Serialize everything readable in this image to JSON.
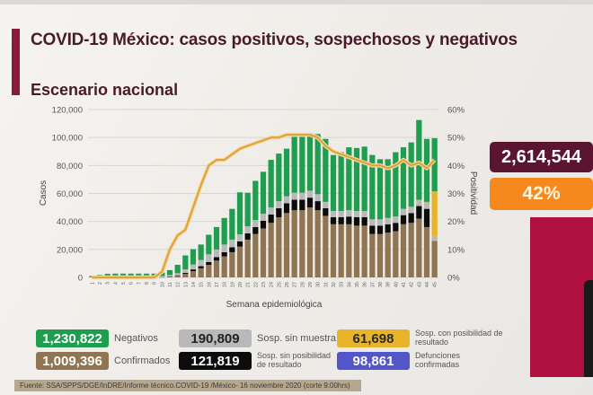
{
  "header": {
    "title": "COVID-19 México: casos positivos, sospechosos y negativos",
    "subtitle": "Escenario nacional"
  },
  "kpis": {
    "total": "2,614,544",
    "positividad": "42%"
  },
  "legend": [
    {
      "key": "negativos",
      "value": "1,230,822",
      "label": "Negativos",
      "color": "#1e9e4e"
    },
    {
      "key": "sin_muestra",
      "value": "190,809",
      "label": "Sosp. sin muestra",
      "color": "#b9b9bb"
    },
    {
      "key": "con_posibilidad",
      "value": "61,698",
      "label": "Sosp. con posibilidad de resultado",
      "color": "#e8b42a"
    },
    {
      "key": "confirmados",
      "value": "1,009,396",
      "label": "Confirmados",
      "color": "#8f7551"
    },
    {
      "key": "sin_posibilidad",
      "value": "121,819",
      "label": "Sosp. sin posibilidad de resultado",
      "color": "#0c0c0c"
    },
    {
      "key": "defunciones",
      "value": "98,861",
      "label": "Defunciones confirmadas",
      "color": "#5356c9"
    }
  ],
  "footer": "Fuente: SSA/SPPS/DGE/InDRE/Informe técnico.COVID-19 /México- 16 noviembre 2020 (corte 9:00hrs)",
  "chart_data": {
    "type": "bar",
    "stacked": true,
    "xlabel": "Semana epidemiológica",
    "ylabel": "Casos",
    "y2label": "Positividad",
    "ylim": [
      0,
      120000
    ],
    "y2lim": [
      0,
      60
    ],
    "yticks": [
      "0",
      "20,000",
      "40,000",
      "60,000",
      "80,000",
      "100,000",
      "120,000"
    ],
    "y2ticks": [
      "0%",
      "10%",
      "20%",
      "30%",
      "40%",
      "50%",
      "60%"
    ],
    "grid": true,
    "categories": [
      "1",
      "2",
      "3",
      "4",
      "5",
      "6",
      "7",
      "8",
      "9",
      "10",
      "11",
      "12",
      "13",
      "14",
      "15",
      "16",
      "17",
      "18",
      "19",
      "20",
      "21",
      "22",
      "23",
      "24",
      "25",
      "26",
      "27",
      "28",
      "29",
      "30",
      "31",
      "32",
      "33",
      "34",
      "35",
      "36",
      "37",
      "38",
      "39",
      "40",
      "41",
      "42",
      "43",
      "44",
      "45"
    ],
    "series": [
      {
        "name": "Confirmados",
        "color": "#8f7551",
        "values": [
          0,
          0,
          0,
          0,
          0,
          0,
          0,
          0,
          0,
          100,
          400,
          1200,
          2500,
          4500,
          6500,
          9000,
          12000,
          15000,
          18000,
          22000,
          27000,
          31000,
          35000,
          39000,
          43000,
          46000,
          48000,
          48000,
          50000,
          48000,
          44000,
          38000,
          38000,
          38000,
          37000,
          37000,
          31000,
          31000,
          32000,
          33000,
          38000,
          39000,
          42000,
          36000,
          26000
        ]
      },
      {
        "name": "Sosp. sin posibilidad de resultado",
        "color": "#0c0c0c",
        "values": [
          0,
          0,
          0,
          0,
          0,
          0,
          0,
          0,
          0,
          0,
          100,
          300,
          700,
          1200,
          1500,
          2000,
          2500,
          3000,
          3500,
          3800,
          4500,
          5000,
          5500,
          6000,
          6500,
          7000,
          7500,
          7500,
          7000,
          6500,
          5500,
          5000,
          5000,
          5500,
          6000,
          6000,
          6000,
          6000,
          6000,
          6000,
          6500,
          7000,
          9000,
          13000,
          0
        ]
      },
      {
        "name": "Sosp. sin muestra",
        "color": "#b9b9bb",
        "values": [
          300,
          600,
          800,
          900,
          900,
          900,
          900,
          900,
          900,
          900,
          1200,
          1500,
          2500,
          3500,
          4500,
          5500,
          5500,
          5500,
          5500,
          5000,
          5000,
          5000,
          5000,
          5000,
          5000,
          5000,
          5000,
          5000,
          5000,
          5000,
          4500,
          4500,
          4500,
          4500,
          4500,
          4500,
          4500,
          4500,
          4500,
          4500,
          4500,
          4500,
          4500,
          4000,
          3500
        ]
      },
      {
        "name": "Sosp. con posibilidad de resultado",
        "color": "#e8b42a",
        "values": [
          0,
          0,
          0,
          0,
          0,
          0,
          0,
          0,
          0,
          0,
          0,
          0,
          0,
          0,
          0,
          0,
          0,
          0,
          0,
          0,
          0,
          0,
          0,
          0,
          0,
          0,
          0,
          0,
          0,
          0,
          0,
          0,
          0,
          0,
          0,
          0,
          0,
          0,
          0,
          0,
          0,
          0,
          0,
          1000,
          32000
        ]
      },
      {
        "name": "Negativos",
        "color": "#1e9e4e",
        "values": [
          700,
          1200,
          1800,
          1800,
          1800,
          1800,
          1800,
          1800,
          1800,
          2500,
          3500,
          6000,
          10000,
          11000,
          11000,
          14000,
          16000,
          19000,
          22000,
          30000,
          24000,
          28000,
          30000,
          34000,
          34000,
          34000,
          40000,
          40000,
          41000,
          43000,
          45000,
          40000,
          42000,
          45000,
          45000,
          46000,
          46000,
          43000,
          42000,
          46000,
          44000,
          46000,
          57000,
          45000,
          38000
        ]
      }
    ],
    "line": {
      "name": "Positividad (%)",
      "color": "#e0a33a",
      "values": [
        0,
        0,
        0,
        0,
        0,
        0,
        0,
        0,
        0,
        2,
        10,
        15,
        17,
        25,
        33,
        40,
        42,
        42,
        44,
        46,
        47,
        48,
        49,
        50,
        50,
        51,
        51,
        51,
        51,
        50,
        47,
        45,
        44,
        43,
        42,
        41,
        40,
        40,
        39,
        40,
        42,
        40,
        41,
        39,
        42
      ]
    }
  }
}
